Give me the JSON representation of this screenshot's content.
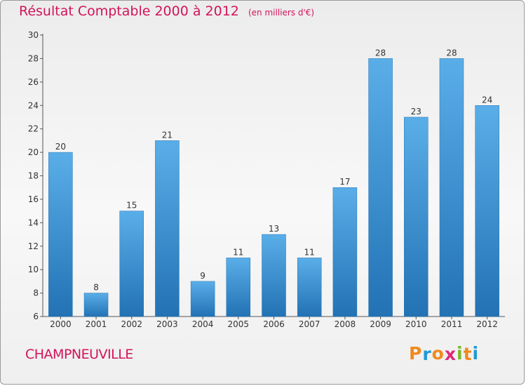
{
  "chart_data": {
    "type": "bar",
    "title": "Résultat Comptable 2000 à 2012",
    "subtitle": "(en milliers d'€)",
    "xlabel": "",
    "ylabel": "",
    "categories": [
      "2000",
      "2001",
      "2002",
      "2003",
      "2004",
      "2005",
      "2006",
      "2007",
      "2008",
      "2009",
      "2010",
      "2011",
      "2012"
    ],
    "values": [
      20,
      8,
      15,
      21,
      9,
      11,
      13,
      11,
      17,
      28,
      23,
      28,
      24
    ],
    "ylim": [
      6,
      30
    ],
    "yticks": [
      6,
      8,
      10,
      12,
      14,
      16,
      18,
      20,
      22,
      24,
      26,
      28,
      30
    ],
    "grid": false,
    "bar_color": "#3b8fd6",
    "bar_color_light": "#5aaee8",
    "bar_color_dark": "#2272b4"
  },
  "footer": {
    "commune": "CHAMPNEUVILLE",
    "brand": "Proxiti"
  },
  "colors": {
    "title": "#d2145a",
    "brand_letters": [
      "#f08a1c",
      "#1e9ad6",
      "#f08a1c",
      "#e0287a",
      "#7ab829",
      "#f08a1c",
      "#1e9ad6"
    ]
  }
}
